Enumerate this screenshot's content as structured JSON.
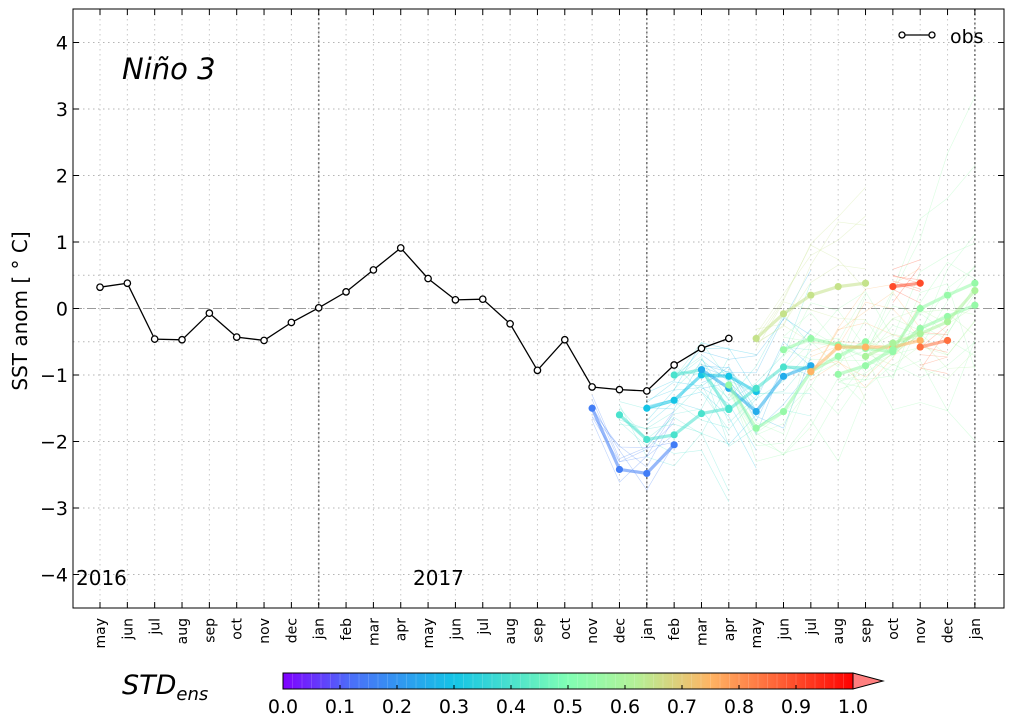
{
  "chart_data": {
    "type": "line",
    "title": "Niño 3",
    "xlabel": "",
    "ylabel": "SST anom [$^\\circ$C]",
    "ylabel_display": "SST anom [ ° C]",
    "ylim": [
      -4.5,
      4.5
    ],
    "yticks": [
      -4,
      -3,
      -2,
      -1,
      0,
      1,
      2,
      3,
      4
    ],
    "ytick_labels": [
      "−4",
      "−3",
      "−2",
      "−1",
      "0",
      "1",
      "2",
      "3",
      "4"
    ],
    "grid": true,
    "legend": {
      "position": "top-right",
      "entries": [
        "obs"
      ]
    },
    "months": [
      "may",
      "jun",
      "jul",
      "aug",
      "sep",
      "oct",
      "nov",
      "dec",
      "jan",
      "feb",
      "mar",
      "apr",
      "may",
      "jun",
      "jul",
      "aug",
      "sep",
      "oct",
      "nov",
      "dec",
      "jan",
      "feb",
      "mar",
      "apr",
      "may",
      "jun",
      "jul",
      "aug",
      "sep",
      "oct",
      "nov",
      "dec",
      "jan"
    ],
    "year_labels": [
      {
        "text": "2016",
        "month_index": 0
      },
      {
        "text": "2017",
        "month_index": 12
      }
    ],
    "year_boundaries": [
      8,
      20,
      32
    ],
    "obs": {
      "name": "obs",
      "values": [
        0.32,
        0.38,
        -0.46,
        -0.47,
        -0.07,
        -0.43,
        -0.48,
        -0.21,
        0.01,
        0.25,
        0.58,
        0.91,
        0.45,
        0.13,
        0.14,
        -0.23,
        -0.93,
        -0.47,
        -1.18,
        -1.22,
        -1.24,
        -0.85,
        -0.6,
        -0.45
      ]
    },
    "forecasts": [
      {
        "start": 18,
        "std": 0.15,
        "values": [
          -1.5,
          -2.42,
          -2.48,
          -2.05
        ]
      },
      {
        "start": 19,
        "std": 0.4,
        "values": [
          -1.6,
          -1.97,
          -1.9,
          -1.58,
          -1.5
        ]
      },
      {
        "start": 20,
        "std": 0.3,
        "values": [
          -1.5,
          -1.38,
          -1.0,
          -1.02,
          -1.25
        ]
      },
      {
        "start": 21,
        "std": 0.4,
        "values": [
          -1.0,
          -0.92,
          -1.52,
          -1.2,
          -0.88,
          -0.9
        ]
      },
      {
        "start": 22,
        "std": 0.25,
        "values": [
          -0.92,
          -1.2,
          -1.55,
          -1.02,
          -0.86
        ]
      },
      {
        "start": 23,
        "std": 0.55,
        "values": [
          -1.15,
          -1.8,
          -1.55,
          -0.95,
          -0.72,
          -0.5
        ]
      },
      {
        "start": 24,
        "std": 0.65,
        "values": [
          -0.45,
          -0.08,
          0.2,
          0.33,
          0.38
        ]
      },
      {
        "start": 25,
        "std": 0.55,
        "values": [
          -0.62,
          -0.45,
          -0.55,
          -0.6,
          -0.65,
          -0.3,
          -0.12,
          0.05
        ]
      },
      {
        "start": 26,
        "std": 0.75,
        "values": [
          -0.95,
          -0.58,
          -0.58,
          -0.58,
          -0.48
        ]
      },
      {
        "start": 27,
        "std": 0.55,
        "values": [
          -0.99,
          -0.86,
          -0.62,
          0.0,
          0.2,
          0.38
        ]
      },
      {
        "start": 28,
        "std": 0.6,
        "values": [
          -0.72,
          -0.52,
          -0.38,
          -0.2,
          0.27
        ]
      },
      {
        "start": 29,
        "std": 0.9,
        "values": [
          0.33,
          0.38
        ]
      },
      {
        "start": 30,
        "std": 0.85,
        "values": [
          -0.58,
          -0.48
        ]
      }
    ],
    "colorbar": {
      "label": "$STD_{ens}$",
      "label_main": "STD",
      "label_sub": "ens",
      "range": [
        0.0,
        1.0
      ],
      "ticks": [
        "0.0",
        "0.1",
        "0.2",
        "0.3",
        "0.4",
        "0.5",
        "0.6",
        "0.7",
        "0.8",
        "0.9",
        "1.0"
      ],
      "extend": "max"
    }
  }
}
